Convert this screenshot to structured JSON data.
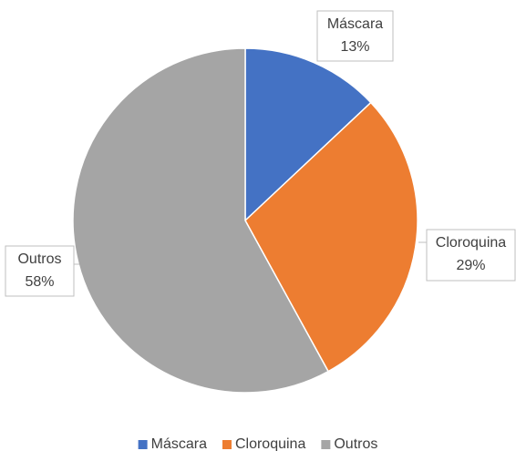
{
  "chart_data": {
    "type": "pie",
    "categories": [
      "Máscara",
      "Cloroquina",
      "Outros"
    ],
    "values": [
      13,
      29,
      58
    ],
    "value_labels": [
      "13%",
      "29%",
      "58%"
    ],
    "colors": [
      "#4472c4",
      "#ed7d31",
      "#a5a5a5"
    ],
    "legend": "bottom"
  }
}
